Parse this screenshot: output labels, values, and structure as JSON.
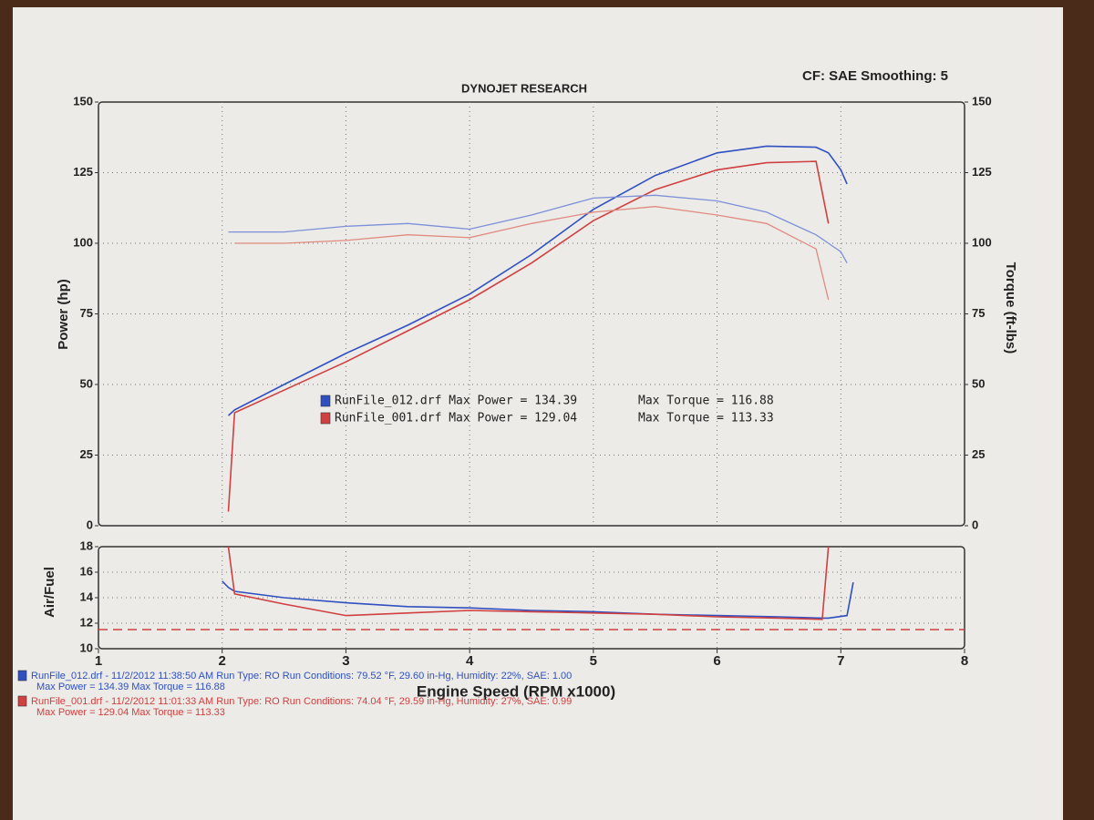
{
  "annotation": "CF: SAE  Smoothing: 5",
  "chart_data": [
    {
      "type": "line",
      "title": "DYNOJET RESEARCH",
      "ylabel": "Power (hp)",
      "y2label": "Torque (ft-lbs)",
      "xlim": [
        1,
        8
      ],
      "ylim": [
        0,
        150
      ],
      "yticks": [
        0,
        25,
        50,
        75,
        100,
        125,
        150
      ],
      "y2lim": [
        0,
        150
      ],
      "y2ticks": [
        0,
        25,
        50,
        75,
        100,
        125,
        150
      ],
      "grid": true,
      "x": [
        2.05,
        2.1,
        2.5,
        3,
        3.5,
        4,
        4.5,
        5,
        5.5,
        6,
        6.4,
        6.8,
        6.9,
        7.0,
        7.05
      ],
      "series": [
        {
          "color": "#3050c0",
          "values": [
            39,
            41,
            50,
            61,
            71,
            82,
            96,
            112,
            124,
            132,
            134.39,
            134,
            132,
            126,
            121
          ]
        },
        {
          "color": "#d04040",
          "values": [
            5,
            40,
            48,
            58,
            69,
            80,
            93,
            108,
            119,
            126,
            128.5,
            129,
            107,
            null,
            null
          ]
        },
        {
          "color": "#7d90d8",
          "axis": "y2",
          "values": [
            104,
            104,
            104,
            106,
            107,
            105,
            110,
            116,
            117,
            115,
            111,
            103,
            100,
            97,
            93
          ]
        },
        {
          "color": "#e08a80",
          "axis": "y2",
          "values": [
            null,
            100,
            100,
            101,
            103,
            102,
            107,
            111,
            113,
            110,
            107,
            98,
            80,
            null,
            null
          ]
        }
      ],
      "legend": [
        {
          "color": "#3050c0",
          "power_text": "RunFile_012.drf Max Power = 134.39",
          "torque_text": "Max Torque = 116.88"
        },
        {
          "color": "#d04040",
          "power_text": "RunFile_001.drf Max Power = 129.04",
          "torque_text": "Max Torque = 113.33"
        }
      ]
    },
    {
      "type": "line",
      "ylabel": "Air/Fuel",
      "xlabel": "Engine Speed (RPM x1000)",
      "xlim": [
        1,
        8
      ],
      "xticks": [
        1,
        2,
        3,
        4,
        5,
        6,
        7,
        8
      ],
      "ylim": [
        10,
        18
      ],
      "yticks": [
        10,
        12,
        14,
        16,
        18
      ],
      "grid": true,
      "x": [
        2,
        2.05,
        2.1,
        2.5,
        3,
        3.5,
        4,
        4.5,
        5,
        5.5,
        6,
        6.5,
        6.85,
        6.9,
        7.05,
        7.1
      ],
      "series": [
        {
          "color": "#3050c0",
          "values": [
            15.3,
            14.8,
            14.5,
            14,
            13.6,
            13.3,
            13.2,
            13,
            12.9,
            12.7,
            12.6,
            12.5,
            12.4,
            12.4,
            12.6,
            15.2
          ]
        },
        {
          "color": "#d04040",
          "values": [
            null,
            18,
            14.3,
            13.5,
            12.6,
            12.8,
            13,
            12.9,
            12.8,
            12.7,
            12.5,
            12.4,
            12.3,
            18,
            null,
            null
          ]
        }
      ],
      "reference_line": {
        "value": 11.5,
        "color": "#d04040"
      }
    }
  ],
  "footer": [
    {
      "color": "#3050c0",
      "line1": "RunFile_012.drf - 11/2/2012 11:38:50 AM  Run Type: RO  Run Conditions: 79.52 °F, 29.60 in-Hg, Humidity: 22%, SAE: 1.00",
      "line2": "Max Power = 134.39  Max Torque = 116.88"
    },
    {
      "color": "#d04040",
      "line1": "RunFile_001.drf - 11/2/2012 11:01:33 AM  Run Type: RO  Run Conditions: 74.04 °F, 29.59 in-Hg, Humidity: 27%, SAE: 0.99",
      "line2": "Max Power = 129.04  Max Torque = 113.33"
    }
  ]
}
